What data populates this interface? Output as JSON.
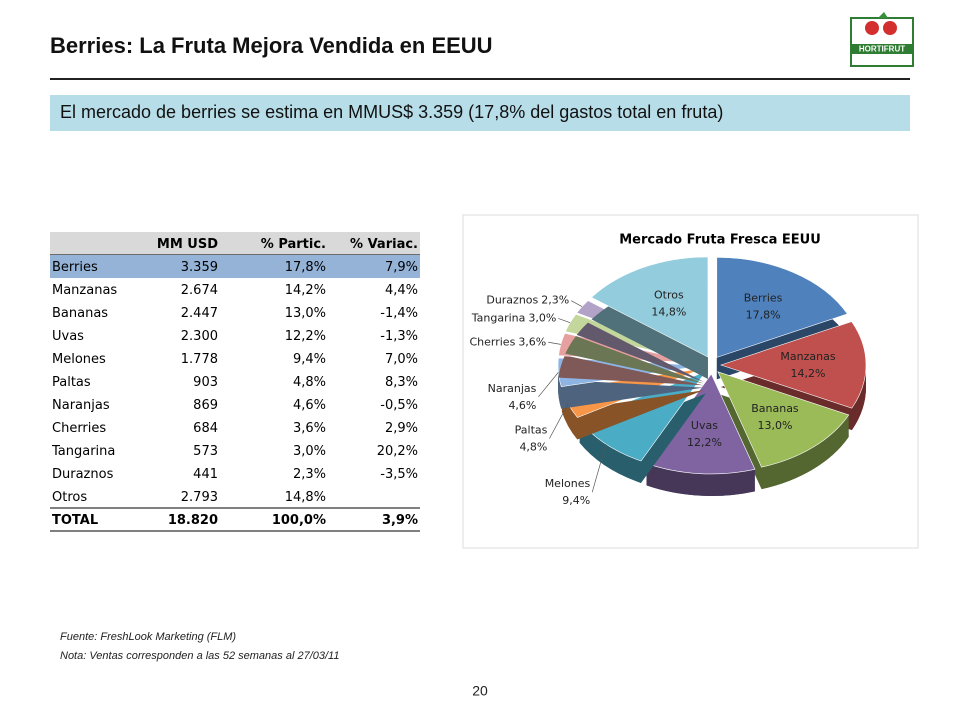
{
  "header": {
    "title": "Berries: La Fruta Mejora Vendida en EEUU",
    "logo": "HORTIFRUT"
  },
  "banner": "El mercado de berries se estima en MMUS$ 3.359  (17,8% del gastos total en fruta)",
  "table": {
    "columns": [
      "MM USD",
      "% Partic.",
      "% Variac."
    ],
    "rows": [
      [
        "Berries",
        "3.359",
        "17,8%",
        "7,9%"
      ],
      [
        "Manzanas",
        "2.674",
        "14,2%",
        "4,4%"
      ],
      [
        "Bananas",
        "2.447",
        "13,0%",
        "-1,4%"
      ],
      [
        "Uvas",
        "2.300",
        "12,2%",
        "-1,3%"
      ],
      [
        "Melones",
        "1.778",
        "9,4%",
        "7,0%"
      ],
      [
        "Paltas",
        "903",
        "4,8%",
        "8,3%"
      ],
      [
        "Naranjas",
        "869",
        "4,6%",
        "-0,5%"
      ],
      [
        "Cherries",
        "684",
        "3,6%",
        "2,9%"
      ],
      [
        "Tangarina",
        "573",
        "3,0%",
        "20,2%"
      ],
      [
        "Duraznos",
        "441",
        "2,3%",
        "-3,5%"
      ],
      [
        "Otros",
        "2.793",
        "14,8%"
      ]
    ],
    "total": [
      "TOTAL",
      "18.820",
      "100,0%",
      "3,9%"
    ]
  },
  "chart_data": {
    "type": "pie",
    "title": "Mercado Fruta Fresca EEUU",
    "categories": [
      "Berries",
      "Manzanas",
      "Bananas",
      "Uvas",
      "Melones",
      "Paltas",
      "Naranjas",
      "Cherries",
      "Tangarina",
      "Duraznos",
      "Otros"
    ],
    "values": [
      17.8,
      14.2,
      13.0,
      12.2,
      9.4,
      4.8,
      4.6,
      3.6,
      3.0,
      2.3,
      14.8
    ],
    "value_labels": [
      "17,8%",
      "14,2%",
      "13,0%",
      "12,2%",
      "9,4%",
      "4,8%",
      "4,6%",
      "3,6%",
      "3,0%",
      "2,3%",
      "14,8%"
    ],
    "colors": [
      "#4f81bd",
      "#c0504d",
      "#9bbb59",
      "#8064a2",
      "#4bacc6",
      "#f79646",
      "#8eb4e3",
      "#e6a0a0",
      "#c3d69b",
      "#b3a2c7",
      "#93cddd"
    ]
  },
  "footer": {
    "source": "Fuente: FreshLook Marketing (FLM)",
    "note": "Nota: Ventas corresponden  a las 52 semanas al 27/03/11",
    "page": "20"
  }
}
